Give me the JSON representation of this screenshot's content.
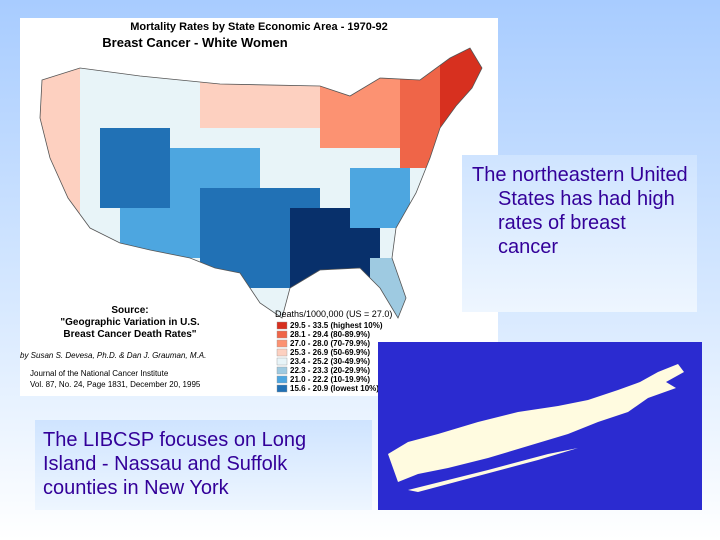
{
  "map_panel": {
    "title": "Mortality Rates by State Economic Area - 1970-92",
    "subtitle": "Breast Cancer - White Women",
    "legend": {
      "title": "Deaths/1000,000 (US = 27.0)",
      "entries": [
        "29.5 - 33.5 (highest 10%)",
        "28.1 - 29.4 (80-89.9%)",
        "27.0 - 28.0 (70-79.9%)",
        "25.3 - 26.9 (50-69.9%)",
        "23.4 - 25.2 (30-49.9%)",
        "22.3 - 23.3 (20-29.9%)",
        "21.0 - 22.2 (10-19.9%)",
        "15.6 - 20.9 (lowest 10%)"
      ]
    },
    "source": {
      "heading": "Source:",
      "title_lines": [
        "\"Geographic Variation in U.S.",
        "Breast Cancer Death Rates\""
      ],
      "authors": "by Susan S. Devesa, Ph.D. & Dan J. Grauman, M.A.",
      "journal": "Journal of the National Cancer Institute",
      "citation": "Vol. 87, No. 24, Page 1831, December 20, 1995"
    }
  },
  "callout_northeast": "The northeastern United States has had high rates of breast cancer",
  "callout_libcsp": "The LIBCSP focuses on Long Island - Nassau and Suffolk counties in New York"
}
